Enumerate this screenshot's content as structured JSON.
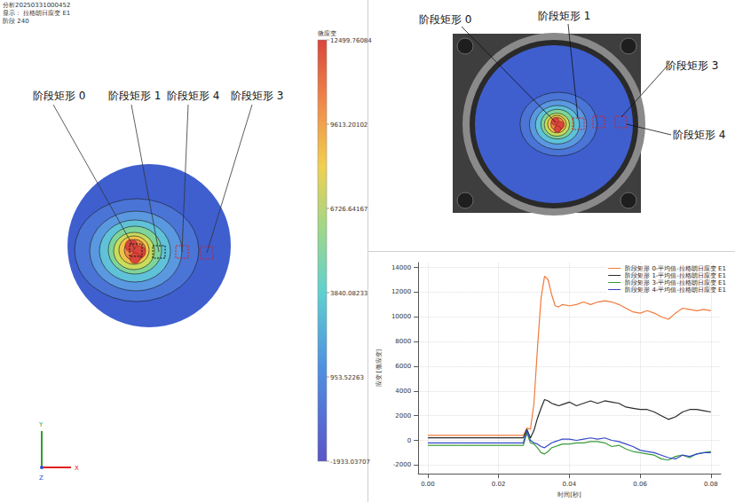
{
  "header": {
    "lines": [
      "分析20250331000452",
      "显示： 拉格朗日应变 E1",
      "阶段 240"
    ]
  },
  "left_map": {
    "labels": [
      "阶段矩形 0",
      "阶段矩形 1",
      "阶段矩形 4",
      "阶段矩形 3"
    ]
  },
  "colorbar": {
    "title": "微应变",
    "range": [
      -1933.03707,
      12499.76084
    ],
    "ticks": [
      12499.76084,
      9613.20102,
      6726.64167,
      3840.08233,
      953.52263,
      -1933.03707
    ]
  },
  "axes_triad": {
    "labels": [
      "Y",
      "X",
      "Z"
    ]
  },
  "photo": {
    "labels": [
      "阶段矩形 0",
      "阶段矩形 1",
      "阶段矩形 3",
      "阶段矩形 4"
    ]
  },
  "chart_data": {
    "type": "line",
    "x": [
      0,
      0.01,
      0.02,
      0.027,
      0.028,
      0.029,
      0.03,
      0.031,
      0.032,
      0.033,
      0.034,
      0.035,
      0.036,
      0.037,
      0.038,
      0.04,
      0.042,
      0.044,
      0.046,
      0.048,
      0.05,
      0.052,
      0.054,
      0.056,
      0.058,
      0.06,
      0.062,
      0.064,
      0.066,
      0.068,
      0.07,
      0.072,
      0.074,
      0.076,
      0.078,
      0.08
    ],
    "series": [
      {
        "name": "阶段矩形 0-平均值-拉格朗日应变 E1",
        "color": "#f07a3a",
        "values": [
          400,
          400,
          400,
          400,
          1000,
          900,
          3000,
          7500,
          11500,
          13300,
          13000,
          11800,
          10900,
          10800,
          11000,
          10900,
          11000,
          11200,
          11000,
          11200,
          11300,
          11200,
          11000,
          10700,
          10400,
          10300,
          10500,
          10300,
          10000,
          9800,
          10300,
          10700,
          10600,
          10500,
          10600,
          10500
        ]
      },
      {
        "name": "阶段矩形 1-平均值-拉格朗日应变 E1",
        "color": "#2b2b2b",
        "values": [
          200,
          200,
          200,
          200,
          900,
          200,
          800,
          1800,
          2600,
          3300,
          3200,
          3000,
          2900,
          2800,
          2900,
          3100,
          2800,
          3000,
          3200,
          3000,
          3200,
          3100,
          3000,
          2700,
          2600,
          2500,
          2500,
          2300,
          2000,
          1700,
          1900,
          2300,
          2500,
          2500,
          2400,
          2300
        ]
      },
      {
        "name": "阶段矩形 3-平均值-拉格朗日应变 E1",
        "color": "#3a9a3a",
        "values": [
          -400,
          -400,
          -400,
          -400,
          600,
          -200,
          -300,
          -600,
          -1000,
          -1100,
          -900,
          -600,
          -500,
          -400,
          -300,
          -300,
          -200,
          -200,
          -100,
          -100,
          -200,
          -500,
          -400,
          -700,
          -900,
          -1000,
          -1100,
          -1200,
          -1500,
          -1600,
          -1300,
          -1200,
          -1400,
          -1100,
          -1000,
          -900
        ]
      },
      {
        "name": "阶段矩形 4-平均值-拉格朗日应变 E1",
        "color": "#3348c8",
        "values": [
          -200,
          -200,
          -200,
          -200,
          800,
          0,
          -200,
          -300,
          -500,
          -600,
          -400,
          -200,
          -100,
          0,
          100,
          100,
          0,
          100,
          200,
          100,
          200,
          0,
          -100,
          -300,
          -500,
          -800,
          -900,
          -1000,
          -1200,
          -1400,
          -1500,
          -1200,
          -1300,
          -1100,
          -1000,
          -1000
        ]
      }
    ],
    "xlim": [
      -0.0027,
      0.0828
    ],
    "xticks": [
      {
        "value": 0,
        "label": "0.00"
      },
      {
        "value": 0.02,
        "label": "0.02"
      },
      {
        "value": 0.04,
        "label": "0.04"
      },
      {
        "value": 0.06,
        "label": "0.06"
      },
      {
        "value": 0.08,
        "label": "0.08"
      }
    ],
    "ylim": [
      -2700,
      14400
    ],
    "yticks": [
      -2000,
      0,
      2000,
      4000,
      6000,
      8000,
      10000,
      12000,
      14000
    ],
    "xlabel": "时间[秒]",
    "ylabel": "应变 [微应变]",
    "grid": true,
    "legend": "upper right"
  }
}
